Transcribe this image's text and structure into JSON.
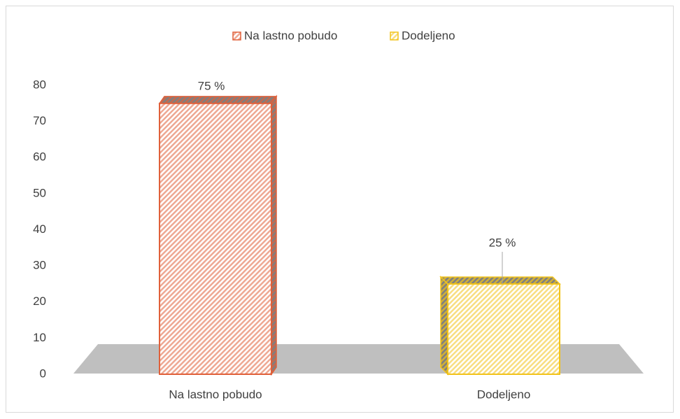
{
  "chart_data": {
    "type": "bar3d",
    "categories": [
      "Na lastno pobudo",
      "Dodeljeno"
    ],
    "values": [
      75,
      25
    ],
    "value_labels": [
      "75 %",
      "25 %"
    ],
    "colors": [
      "#e0603a",
      "#f2c31a"
    ],
    "ylim": [
      0,
      80
    ],
    "yticks": [
      0,
      10,
      20,
      30,
      40,
      50,
      60,
      70,
      80
    ],
    "legend": "top"
  }
}
